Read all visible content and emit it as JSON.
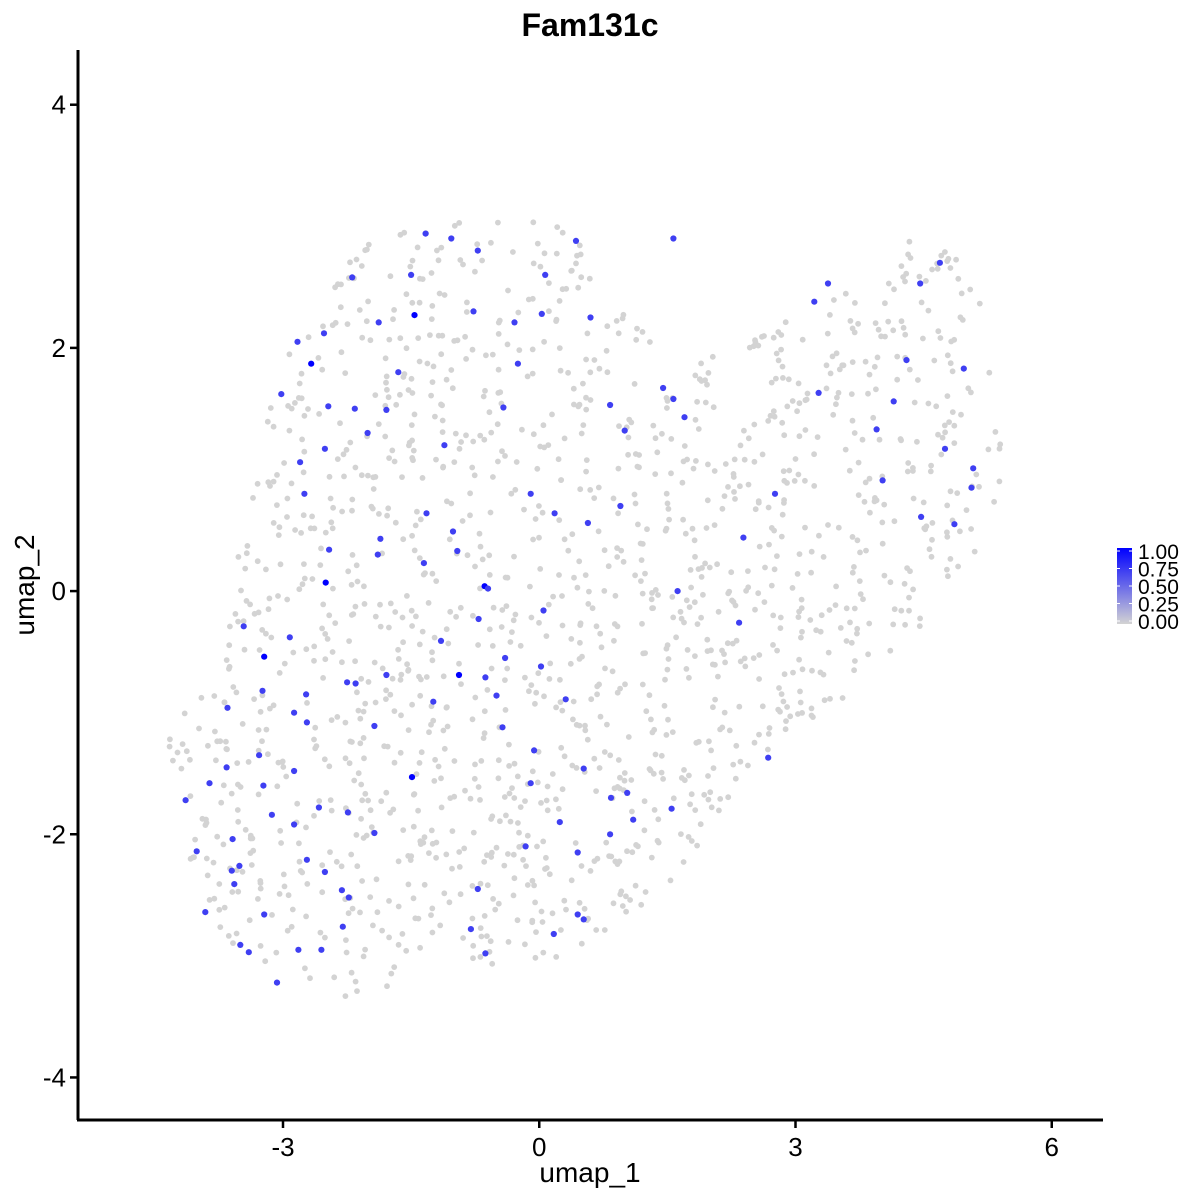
{
  "chart_data": {
    "type": "scatter",
    "title": "Fam131c",
    "xlabel": "umap_1",
    "ylabel": "umap_2",
    "xlim": [
      -5.4,
      6.6
    ],
    "ylim": [
      -4.35,
      4.45
    ],
    "xticks": [
      -3,
      0,
      3,
      6
    ],
    "xtick_labels": [
      "-3",
      "0",
      "3",
      "6"
    ],
    "yticks": [
      -4,
      -2,
      0,
      2,
      4
    ],
    "ytick_labels": [
      "-4",
      "-2",
      "0",
      "2",
      "4"
    ],
    "grid": false,
    "legend": {
      "placement": "right",
      "type": "colorbar",
      "low_color": "#d3d3d3",
      "high_color": "#0000ff",
      "range": [
        0,
        1
      ],
      "ticks": [
        0,
        0.25,
        0.5,
        0.75,
        1.0
      ],
      "tick_labels": [
        "0.00",
        "0.25",
        "0.50",
        "0.75",
        "1.00"
      ]
    },
    "background_points": {
      "color": "#d3d3d3",
      "expression": 0,
      "approx_count": 1500,
      "region_outline": [
        [
          -4.6,
          -1.3
        ],
        [
          -4.1,
          -1.5
        ],
        [
          -4.3,
          -2.1
        ],
        [
          -3.6,
          -3.0
        ],
        [
          -2.7,
          -3.2
        ],
        [
          -2.1,
          -3.4
        ],
        [
          -1.4,
          -3.1
        ],
        [
          -0.5,
          -3.1
        ],
        [
          0.3,
          -3.0
        ],
        [
          1.4,
          -2.5
        ],
        [
          2.6,
          -1.5
        ],
        [
          3.6,
          -0.9
        ],
        [
          4.4,
          -0.4
        ],
        [
          5.1,
          0.2
        ],
        [
          5.4,
          0.9
        ],
        [
          5.5,
          2.1
        ],
        [
          5.0,
          2.7
        ],
        [
          4.4,
          3.0
        ],
        [
          3.6,
          2.5
        ],
        [
          2.6,
          2.1
        ],
        [
          1.6,
          1.8
        ],
        [
          0.8,
          2.7
        ],
        [
          0.0,
          3.1
        ],
        [
          -1.2,
          3.05
        ],
        [
          -2.2,
          2.8
        ],
        [
          -2.9,
          2.0
        ],
        [
          -3.4,
          1.0
        ],
        [
          -3.6,
          -0.1
        ],
        [
          -4.0,
          -0.9
        ]
      ]
    },
    "expressed_points": [
      {
        "x": -1.46,
        "y": 2.27,
        "v": 1.0
      },
      {
        "x": -2.67,
        "y": 1.87,
        "v": 1.0
      },
      {
        "x": -2.5,
        "y": 0.07,
        "v": 1.0
      },
      {
        "x": -0.64,
        "y": 0.04,
        "v": 1.0
      },
      {
        "x": -3.22,
        "y": -0.54,
        "v": 1.0
      },
      {
        "x": -0.94,
        "y": -0.69,
        "v": 1.0
      },
      {
        "x": -1.49,
        "y": -1.53,
        "v": 1.0
      },
      {
        "x": -1.5,
        "y": 2.6,
        "v": 0.7
      },
      {
        "x": -1.33,
        "y": 2.94,
        "v": 0.7
      },
      {
        "x": -1.03,
        "y": 2.9,
        "v": 0.7
      },
      {
        "x": -0.72,
        "y": 2.8,
        "v": 0.7
      },
      {
        "x": -2.19,
        "y": 2.58,
        "v": 0.7
      },
      {
        "x": -1.88,
        "y": 2.21,
        "v": 0.7
      },
      {
        "x": -2.83,
        "y": 2.05,
        "v": 0.7
      },
      {
        "x": -2.52,
        "y": 2.12,
        "v": 0.7
      },
      {
        "x": -0.77,
        "y": 2.3,
        "v": 0.7
      },
      {
        "x": -0.29,
        "y": 2.21,
        "v": 0.7
      },
      {
        "x": 0.03,
        "y": 2.28,
        "v": 0.7
      },
      {
        "x": -1.65,
        "y": 1.8,
        "v": 0.7
      },
      {
        "x": -1.79,
        "y": 1.49,
        "v": 0.7
      },
      {
        "x": -2.16,
        "y": 1.5,
        "v": 0.7
      },
      {
        "x": -3.02,
        "y": 1.62,
        "v": 0.7
      },
      {
        "x": -2.47,
        "y": 1.52,
        "v": 0.7
      },
      {
        "x": -2.51,
        "y": 1.17,
        "v": 0.7
      },
      {
        "x": -2.01,
        "y": 1.3,
        "v": 0.7
      },
      {
        "x": -2.8,
        "y": 1.06,
        "v": 0.7
      },
      {
        "x": -1.11,
        "y": 1.2,
        "v": 0.7
      },
      {
        "x": -0.42,
        "y": 1.51,
        "v": 0.7
      },
      {
        "x": -0.25,
        "y": 1.87,
        "v": 0.7
      },
      {
        "x": 0.6,
        "y": 2.25,
        "v": 0.7
      },
      {
        "x": 0.43,
        "y": 2.88,
        "v": 0.7
      },
      {
        "x": 1.57,
        "y": 2.9,
        "v": 0.7
      },
      {
        "x": 0.07,
        "y": 2.6,
        "v": 0.7
      },
      {
        "x": -2.75,
        "y": 0.8,
        "v": 0.7
      },
      {
        "x": -1.32,
        "y": 0.64,
        "v": 0.7
      },
      {
        "x": -0.1,
        "y": 0.8,
        "v": 0.7
      },
      {
        "x": 0.18,
        "y": 0.64,
        "v": 0.7
      },
      {
        "x": 0.57,
        "y": 0.56,
        "v": 0.7
      },
      {
        "x": -1.86,
        "y": 0.43,
        "v": 0.7
      },
      {
        "x": -1.01,
        "y": 0.49,
        "v": 0.7
      },
      {
        "x": -0.96,
        "y": 0.33,
        "v": 0.7
      },
      {
        "x": -2.46,
        "y": 0.34,
        "v": 0.7
      },
      {
        "x": -1.89,
        "y": 0.3,
        "v": 0.7
      },
      {
        "x": -0.6,
        "y": 0.02,
        "v": 0.7
      },
      {
        "x": -1.35,
        "y": 0.23,
        "v": 0.7
      },
      {
        "x": 0.05,
        "y": -0.16,
        "v": 0.7
      },
      {
        "x": -3.46,
        "y": -0.29,
        "v": 0.7
      },
      {
        "x": -2.92,
        "y": -0.38,
        "v": 0.7
      },
      {
        "x": -1.15,
        "y": -0.41,
        "v": 0.7
      },
      {
        "x": -0.71,
        "y": -0.23,
        "v": 0.7
      },
      {
        "x": -0.63,
        "y": -0.71,
        "v": 0.7
      },
      {
        "x": -0.4,
        "y": -0.55,
        "v": 0.7
      },
      {
        "x": -1.79,
        "y": -0.69,
        "v": 0.7
      },
      {
        "x": -2.15,
        "y": -0.76,
        "v": 0.7
      },
      {
        "x": -2.25,
        "y": -0.75,
        "v": 0.7
      },
      {
        "x": 0.02,
        "y": -0.62,
        "v": 0.7
      },
      {
        "x": -0.5,
        "y": -0.86,
        "v": 0.7
      },
      {
        "x": -3.24,
        "y": -0.82,
        "v": 0.7
      },
      {
        "x": -2.73,
        "y": -0.85,
        "v": 0.7
      },
      {
        "x": -1.24,
        "y": -0.91,
        "v": 0.7
      },
      {
        "x": 0.31,
        "y": -0.89,
        "v": 0.7
      },
      {
        "x": -3.65,
        "y": -0.96,
        "v": 0.7
      },
      {
        "x": -2.87,
        "y": -1.0,
        "v": 0.7
      },
      {
        "x": -2.72,
        "y": -1.08,
        "v": 0.7
      },
      {
        "x": -0.43,
        "y": -1.12,
        "v": 0.7
      },
      {
        "x": -1.93,
        "y": -1.11,
        "v": 0.7
      },
      {
        "x": -0.06,
        "y": -1.31,
        "v": 0.7
      },
      {
        "x": 2.34,
        "y": -0.26,
        "v": 0.7
      },
      {
        "x": 1.62,
        "y": 0.0,
        "v": 0.7
      },
      {
        "x": 2.39,
        "y": 0.44,
        "v": 0.7
      },
      {
        "x": 2.76,
        "y": 0.8,
        "v": 0.7
      },
      {
        "x": 0.95,
        "y": 0.7,
        "v": 0.7
      },
      {
        "x": 0.83,
        "y": 1.53,
        "v": 0.7
      },
      {
        "x": 1.0,
        "y": 1.32,
        "v": 0.7
      },
      {
        "x": 1.45,
        "y": 1.67,
        "v": 0.7
      },
      {
        "x": 1.57,
        "y": 1.58,
        "v": 0.7
      },
      {
        "x": 1.7,
        "y": 1.43,
        "v": 0.7
      },
      {
        "x": 3.22,
        "y": 2.38,
        "v": 0.7
      },
      {
        "x": 3.38,
        "y": 2.53,
        "v": 0.7
      },
      {
        "x": 3.27,
        "y": 1.63,
        "v": 0.7
      },
      {
        "x": 3.95,
        "y": 1.33,
        "v": 0.7
      },
      {
        "x": 4.15,
        "y": 1.56,
        "v": 0.7
      },
      {
        "x": 4.3,
        "y": 1.9,
        "v": 0.7
      },
      {
        "x": 4.46,
        "y": 2.53,
        "v": 0.7
      },
      {
        "x": 4.69,
        "y": 2.7,
        "v": 0.7
      },
      {
        "x": 4.97,
        "y": 1.83,
        "v": 0.7
      },
      {
        "x": 4.75,
        "y": 1.17,
        "v": 0.7
      },
      {
        "x": 5.08,
        "y": 1.01,
        "v": 0.7
      },
      {
        "x": 5.06,
        "y": 0.85,
        "v": 0.7
      },
      {
        "x": 4.02,
        "y": 0.91,
        "v": 0.7
      },
      {
        "x": 4.86,
        "y": 0.55,
        "v": 0.7
      },
      {
        "x": 4.47,
        "y": 0.61,
        "v": 0.7
      },
      {
        "x": 2.68,
        "y": -1.37,
        "v": 0.7
      },
      {
        "x": 1.55,
        "y": -1.79,
        "v": 0.7
      },
      {
        "x": 1.03,
        "y": -1.66,
        "v": 0.7
      },
      {
        "x": 0.84,
        "y": -1.7,
        "v": 0.7
      },
      {
        "x": 0.52,
        "y": -1.46,
        "v": 0.7
      },
      {
        "x": 0.24,
        "y": -1.9,
        "v": 0.7
      },
      {
        "x": -0.1,
        "y": -1.58,
        "v": 0.7
      },
      {
        "x": 0.83,
        "y": -2.0,
        "v": 0.7
      },
      {
        "x": 1.1,
        "y": -1.88,
        "v": 0.7
      },
      {
        "x": 0.45,
        "y": -2.15,
        "v": 0.7
      },
      {
        "x": -0.16,
        "y": -2.1,
        "v": 0.7
      },
      {
        "x": -0.72,
        "y": -2.45,
        "v": 0.7
      },
      {
        "x": 0.45,
        "y": -2.66,
        "v": 0.7
      },
      {
        "x": 0.52,
        "y": -2.7,
        "v": 0.7
      },
      {
        "x": 0.17,
        "y": -2.82,
        "v": 0.7
      },
      {
        "x": -0.8,
        "y": -2.78,
        "v": 0.7
      },
      {
        "x": -0.63,
        "y": -2.98,
        "v": 0.7
      },
      {
        "x": -4.14,
        "y": -1.72,
        "v": 0.7
      },
      {
        "x": -3.86,
        "y": -1.58,
        "v": 0.7
      },
      {
        "x": -3.66,
        "y": -1.45,
        "v": 0.7
      },
      {
        "x": -3.28,
        "y": -1.35,
        "v": 0.7
      },
      {
        "x": -3.23,
        "y": -1.6,
        "v": 0.7
      },
      {
        "x": -3.13,
        "y": -1.84,
        "v": 0.7
      },
      {
        "x": -2.87,
        "y": -1.48,
        "v": 0.7
      },
      {
        "x": -2.58,
        "y": -1.78,
        "v": 0.7
      },
      {
        "x": -2.24,
        "y": -1.82,
        "v": 0.7
      },
      {
        "x": -1.93,
        "y": -1.99,
        "v": 0.7
      },
      {
        "x": -2.87,
        "y": -1.92,
        "v": 0.7
      },
      {
        "x": -2.72,
        "y": -2.21,
        "v": 0.7
      },
      {
        "x": -2.51,
        "y": -2.31,
        "v": 0.7
      },
      {
        "x": -2.31,
        "y": -2.46,
        "v": 0.7
      },
      {
        "x": -4.01,
        "y": -2.14,
        "v": 0.7
      },
      {
        "x": -3.59,
        "y": -2.04,
        "v": 0.7
      },
      {
        "x": -3.6,
        "y": -2.3,
        "v": 0.7
      },
      {
        "x": -3.51,
        "y": -2.26,
        "v": 0.7
      },
      {
        "x": -3.57,
        "y": -2.41,
        "v": 0.7
      },
      {
        "x": -3.91,
        "y": -2.64,
        "v": 0.7
      },
      {
        "x": -3.22,
        "y": -2.66,
        "v": 0.7
      },
      {
        "x": -2.23,
        "y": -2.52,
        "v": 0.7
      },
      {
        "x": -2.3,
        "y": -2.76,
        "v": 0.7
      },
      {
        "x": -3.5,
        "y": -2.91,
        "v": 0.7
      },
      {
        "x": -3.4,
        "y": -2.97,
        "v": 0.7
      },
      {
        "x": -2.82,
        "y": -2.95,
        "v": 0.7
      },
      {
        "x": -2.55,
        "y": -2.95,
        "v": 0.7
      },
      {
        "x": -3.07,
        "y": -3.22,
        "v": 0.7
      }
    ]
  }
}
